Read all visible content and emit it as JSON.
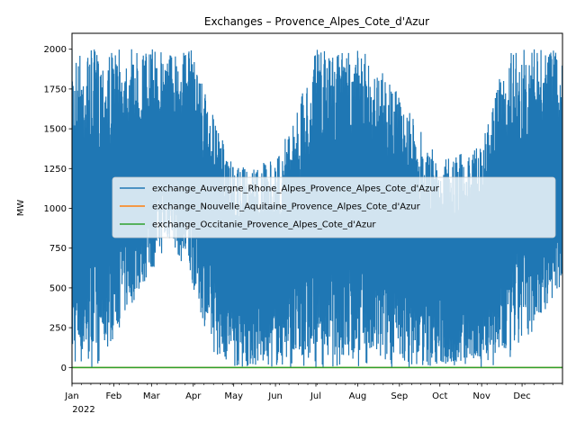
{
  "chart_data": {
    "type": "line",
    "title": "Exchanges – Provence_Alpes_Cote_d'Azur",
    "xlabel": "",
    "ylabel": "MW",
    "x_range": [
      "2022-01-01",
      "2022-12-31"
    ],
    "ylim": [
      -100,
      2100
    ],
    "y_ticks": [
      0,
      250,
      500,
      750,
      1000,
      1250,
      1500,
      1750,
      2000
    ],
    "x_ticks": [
      {
        "date": "2022-01-01",
        "label": "Jan",
        "sublabel": "2022"
      },
      {
        "date": "2022-02-01",
        "label": "Feb"
      },
      {
        "date": "2022-03-01",
        "label": "Mar"
      },
      {
        "date": "2022-04-01",
        "label": "Apr"
      },
      {
        "date": "2022-05-01",
        "label": "May"
      },
      {
        "date": "2022-06-01",
        "label": "Jun"
      },
      {
        "date": "2022-07-01",
        "label": "Jul"
      },
      {
        "date": "2022-08-01",
        "label": "Aug"
      },
      {
        "date": "2022-09-01",
        "label": "Sep"
      },
      {
        "date": "2022-10-01",
        "label": "Oct"
      },
      {
        "date": "2022-11-01",
        "label": "Nov"
      },
      {
        "date": "2022-12-01",
        "label": "Dec"
      }
    ],
    "grid": false,
    "legend_position": "center-right",
    "series": [
      {
        "name": "exchange_Auvergne_Rhone_Alpes_Provence_Alpes_Cote_d'Azur",
        "color": "#1f77b4",
        "hourly_oscillation": true,
        "envelope": [
          {
            "date": "2022-01-01",
            "low": 0,
            "high": 2000
          },
          {
            "date": "2022-01-20",
            "low": 0,
            "high": 2000
          },
          {
            "date": "2022-02-15",
            "low": 400,
            "high": 2000
          },
          {
            "date": "2022-03-15",
            "low": 800,
            "high": 2000
          },
          {
            "date": "2022-04-01",
            "low": 500,
            "high": 2000
          },
          {
            "date": "2022-04-15",
            "low": 100,
            "high": 1600
          },
          {
            "date": "2022-05-01",
            "low": 0,
            "high": 1250
          },
          {
            "date": "2022-06-01",
            "low": 0,
            "high": 1300
          },
          {
            "date": "2022-06-20",
            "low": 0,
            "high": 1700
          },
          {
            "date": "2022-07-01",
            "low": 0,
            "high": 2000
          },
          {
            "date": "2022-08-01",
            "low": 0,
            "high": 2000
          },
          {
            "date": "2022-08-20",
            "low": 0,
            "high": 1900
          },
          {
            "date": "2022-09-01",
            "low": 0,
            "high": 1700
          },
          {
            "date": "2022-10-01",
            "low": 0,
            "high": 1300
          },
          {
            "date": "2022-11-01",
            "low": 0,
            "high": 1400
          },
          {
            "date": "2022-11-20",
            "low": 0,
            "high": 2000
          },
          {
            "date": "2022-12-31",
            "low": 500,
            "high": 2000
          }
        ]
      },
      {
        "name": "exchange_Nouvelle_Aquitaine_Provence_Alpes_Cote_d'Azur",
        "color": "#ff7f0e",
        "values": [
          0,
          0
        ]
      },
      {
        "name": "exchange_Occitanie_Provence_Alpes_Cote_d'Azur",
        "color": "#2ca02c",
        "values": [
          0,
          0
        ]
      }
    ]
  }
}
